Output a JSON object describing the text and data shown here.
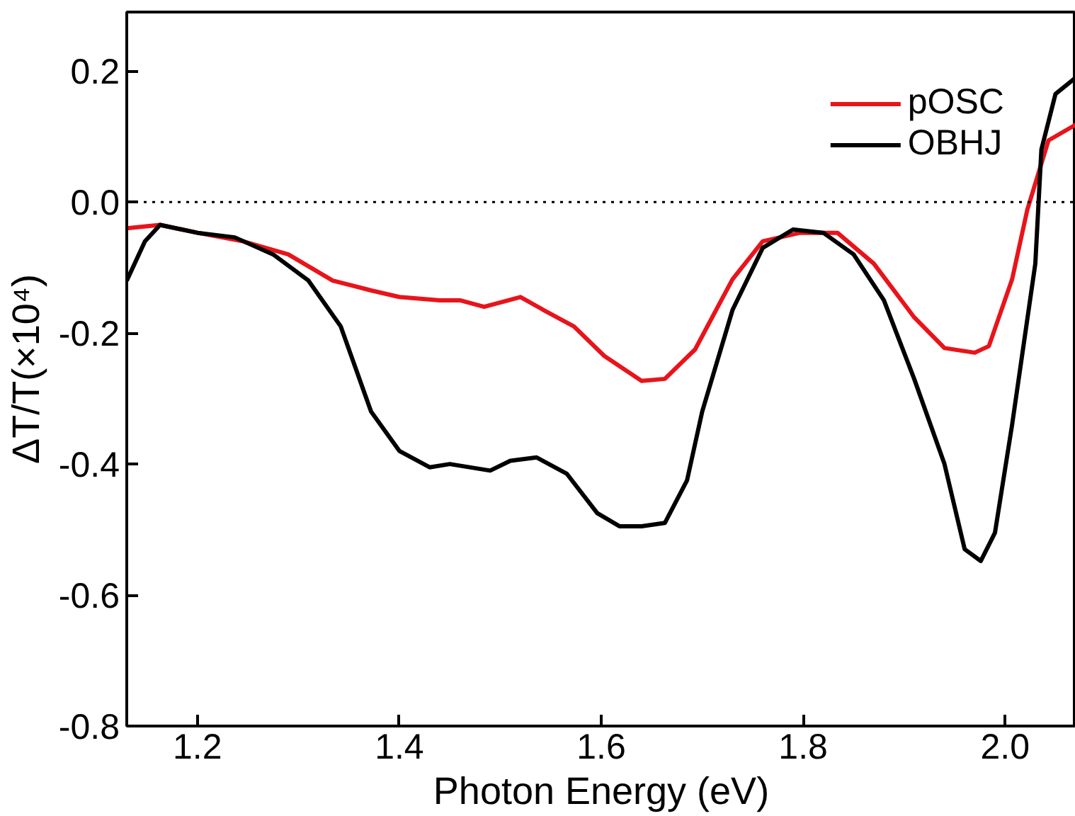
{
  "chart_data": {
    "type": "line",
    "xlabel": "Photon Energy (eV)",
    "ylabel": "ΔT/T(×10⁴)",
    "xlim": [
      1.13,
      2.07
    ],
    "ylim": [
      -0.8,
      0.29
    ],
    "xticks": [
      1.2,
      1.4,
      1.6,
      1.8,
      {
        "value": 2.0,
        "label": "2.0"
      }
    ],
    "yticks": [
      {
        "value": -0.8,
        "label": "-0.8"
      },
      {
        "value": -0.6,
        "label": "-0.6"
      },
      {
        "value": -0.4,
        "label": "-0.4"
      },
      {
        "value": -0.2,
        "label": "-0.2"
      },
      {
        "value": 0,
        "label": "0.0"
      },
      {
        "value": 0.2,
        "label": "0.2"
      }
    ],
    "grid": false,
    "legend": "top right",
    "marker": "none",
    "line_style": "solid",
    "ref_lines": [
      {
        "axis": "y",
        "value": 0,
        "line_style": "dotted",
        "color": "#000000"
      }
    ],
    "series": [
      {
        "name": "pOSC",
        "color": "#e8141b",
        "x": [
          1.13,
          1.163,
          1.2,
          1.245,
          1.29,
          1.334,
          1.372,
          1.4,
          1.44,
          1.46,
          1.484,
          1.52,
          1.543,
          1.573,
          1.603,
          1.64,
          1.663,
          1.693,
          1.73,
          1.76,
          1.797,
          1.834,
          1.87,
          1.91,
          1.94,
          1.97,
          1.984,
          2.007,
          2.022,
          2.043,
          2.07
        ],
        "values": [
          -0.04,
          -0.035,
          -0.047,
          -0.06,
          -0.08,
          -0.12,
          -0.135,
          -0.145,
          -0.15,
          -0.15,
          -0.16,
          -0.145,
          -0.165,
          -0.19,
          -0.235,
          -0.273,
          -0.27,
          -0.225,
          -0.118,
          -0.06,
          -0.047,
          -0.047,
          -0.094,
          -0.176,
          -0.223,
          -0.23,
          -0.22,
          -0.118,
          -0.012,
          0.094,
          0.118
        ]
      },
      {
        "name": "OBHJ",
        "color": "#000000",
        "x": [
          1.13,
          1.148,
          1.163,
          1.2,
          1.237,
          1.275,
          1.31,
          1.342,
          1.372,
          1.4,
          1.43,
          1.45,
          1.49,
          1.51,
          1.536,
          1.566,
          1.596,
          1.618,
          1.64,
          1.663,
          1.685,
          1.7,
          1.73,
          1.76,
          1.79,
          1.82,
          1.85,
          1.88,
          1.91,
          1.94,
          1.96,
          1.976,
          1.99,
          2.007,
          2.03,
          2.036,
          2.05,
          2.07
        ],
        "values": [
          -0.12,
          -0.06,
          -0.035,
          -0.047,
          -0.054,
          -0.08,
          -0.12,
          -0.19,
          -0.32,
          -0.38,
          -0.405,
          -0.4,
          -0.41,
          -0.395,
          -0.39,
          -0.415,
          -0.475,
          -0.495,
          -0.495,
          -0.49,
          -0.425,
          -0.32,
          -0.165,
          -0.07,
          -0.042,
          -0.047,
          -0.08,
          -0.15,
          -0.27,
          -0.4,
          -0.53,
          -0.548,
          -0.505,
          -0.34,
          -0.094,
          0.08,
          0.165,
          0.19
        ]
      }
    ]
  }
}
